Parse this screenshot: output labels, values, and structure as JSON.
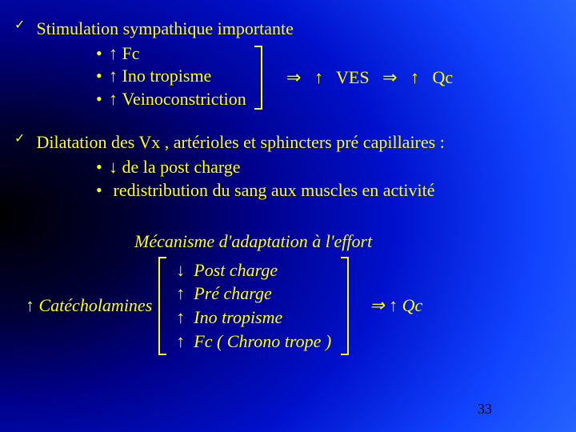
{
  "colors": {
    "text": "#ffff00",
    "pagenum": "#000000",
    "bg_center": "#000000",
    "bg_outer": "#3377ff"
  },
  "font": {
    "family": "Times New Roman",
    "size_pt": 22,
    "italic_section": true
  },
  "glyphs": {
    "check": "✓",
    "up": "↑",
    "down": "↓",
    "implies": "⇒",
    "bullet": "•"
  },
  "block1": {
    "title": "Stimulation sympathique importante",
    "items": [
      "Fc",
      "Ino tropisme",
      "Veinoconstriction"
    ],
    "result_parts": {
      "ves": "VES",
      "qc": "Qc"
    }
  },
  "block2": {
    "title": "Dilatation des Vx , artérioles et sphincters pré capillaires :",
    "items": [
      {
        "dir": "down",
        "text": "de la post charge"
      },
      {
        "dir": "none",
        "text": "redistribution du sang aux muscles en activité"
      }
    ]
  },
  "mechanism": {
    "title": "Mécanisme d'adaptation à l'effort",
    "left": "Catécholamines",
    "lines": [
      {
        "dir": "down",
        "text": "Post charge"
      },
      {
        "dir": "up",
        "text": "Pré charge"
      },
      {
        "dir": "up",
        "text": "Ino tropisme"
      },
      {
        "dir": "up",
        "text": "Fc ( Chrono trope )"
      }
    ],
    "result": "Qc"
  },
  "page_number": "33"
}
